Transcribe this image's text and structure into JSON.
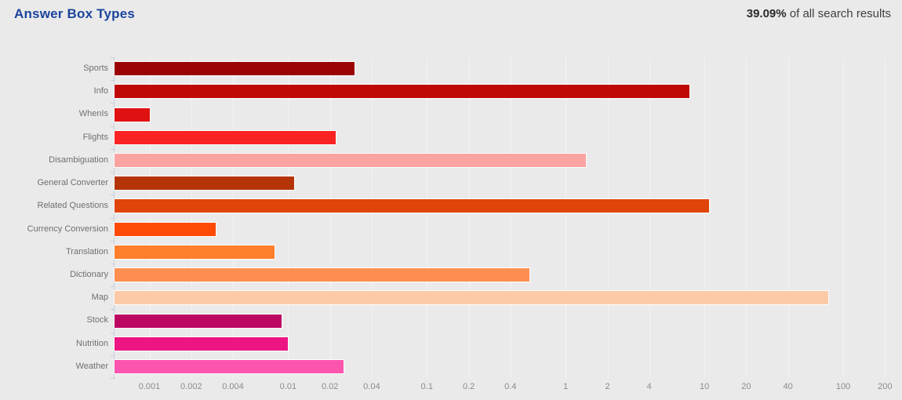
{
  "header": {
    "title": "Answer Box Types",
    "stat_value": "39.09%",
    "stat_label": " of all search results"
  },
  "colors": {
    "background": "#eaeaea",
    "title": "#1c449c",
    "stat_text": "#3f3f3f",
    "axis": "#c7cfdb",
    "gridline": "#f3f3f3",
    "category_label": "#6f6f6f",
    "tick_label": "#8b8b8b"
  },
  "chart_data": {
    "type": "bar",
    "orientation": "horizontal",
    "x_scale": "log",
    "title": "Answer Box Types",
    "xlabel": "",
    "ylabel": "",
    "xlim": [
      0.00056,
      233
    ],
    "grid": true,
    "legend": false,
    "x_ticks": [
      0.001,
      0.002,
      0.004,
      0.01,
      0.02,
      0.04,
      0.1,
      0.2,
      0.4,
      1,
      2,
      4,
      10,
      20,
      40,
      100,
      200
    ],
    "x_tick_labels": [
      "0.001",
      "0.002",
      "0.004",
      "0.01",
      "0.02",
      "0.04",
      "0.1",
      "0.2",
      "0.4",
      "1",
      "2",
      "4",
      "10",
      "20",
      "40",
      "100",
      "200"
    ],
    "bars": [
      {
        "label": "Sports",
        "value": 0.03,
        "color": "#9a0404"
      },
      {
        "label": "Info",
        "value": 7.8,
        "color": "#bf0808"
      },
      {
        "label": "WhenIs",
        "value": 0.001,
        "color": "#e01111"
      },
      {
        "label": "Flights",
        "value": 0.022,
        "color": "#fa2323"
      },
      {
        "label": "Disambiguation",
        "value": 1.4,
        "color": "#fba3a1"
      },
      {
        "label": "General Converter",
        "value": 0.011,
        "color": "#b43408"
      },
      {
        "label": "Related Questions",
        "value": 10.8,
        "color": "#df4508"
      },
      {
        "label": "Currency Conversion",
        "value": 0.003,
        "color": "#fd4a06"
      },
      {
        "label": "Translation",
        "value": 0.008,
        "color": "#fd7f2b"
      },
      {
        "label": "Dictionary",
        "value": 0.55,
        "color": "#fc8f50"
      },
      {
        "label": "Map",
        "value": 78,
        "color": "#fccaa7"
      },
      {
        "label": "Stock",
        "value": 0.009,
        "color": "#bd0863"
      },
      {
        "label": "Nutrition",
        "value": 0.0099,
        "color": "#ed1581"
      },
      {
        "label": "Weather",
        "value": 0.025,
        "color": "#fb55ae"
      }
    ]
  }
}
